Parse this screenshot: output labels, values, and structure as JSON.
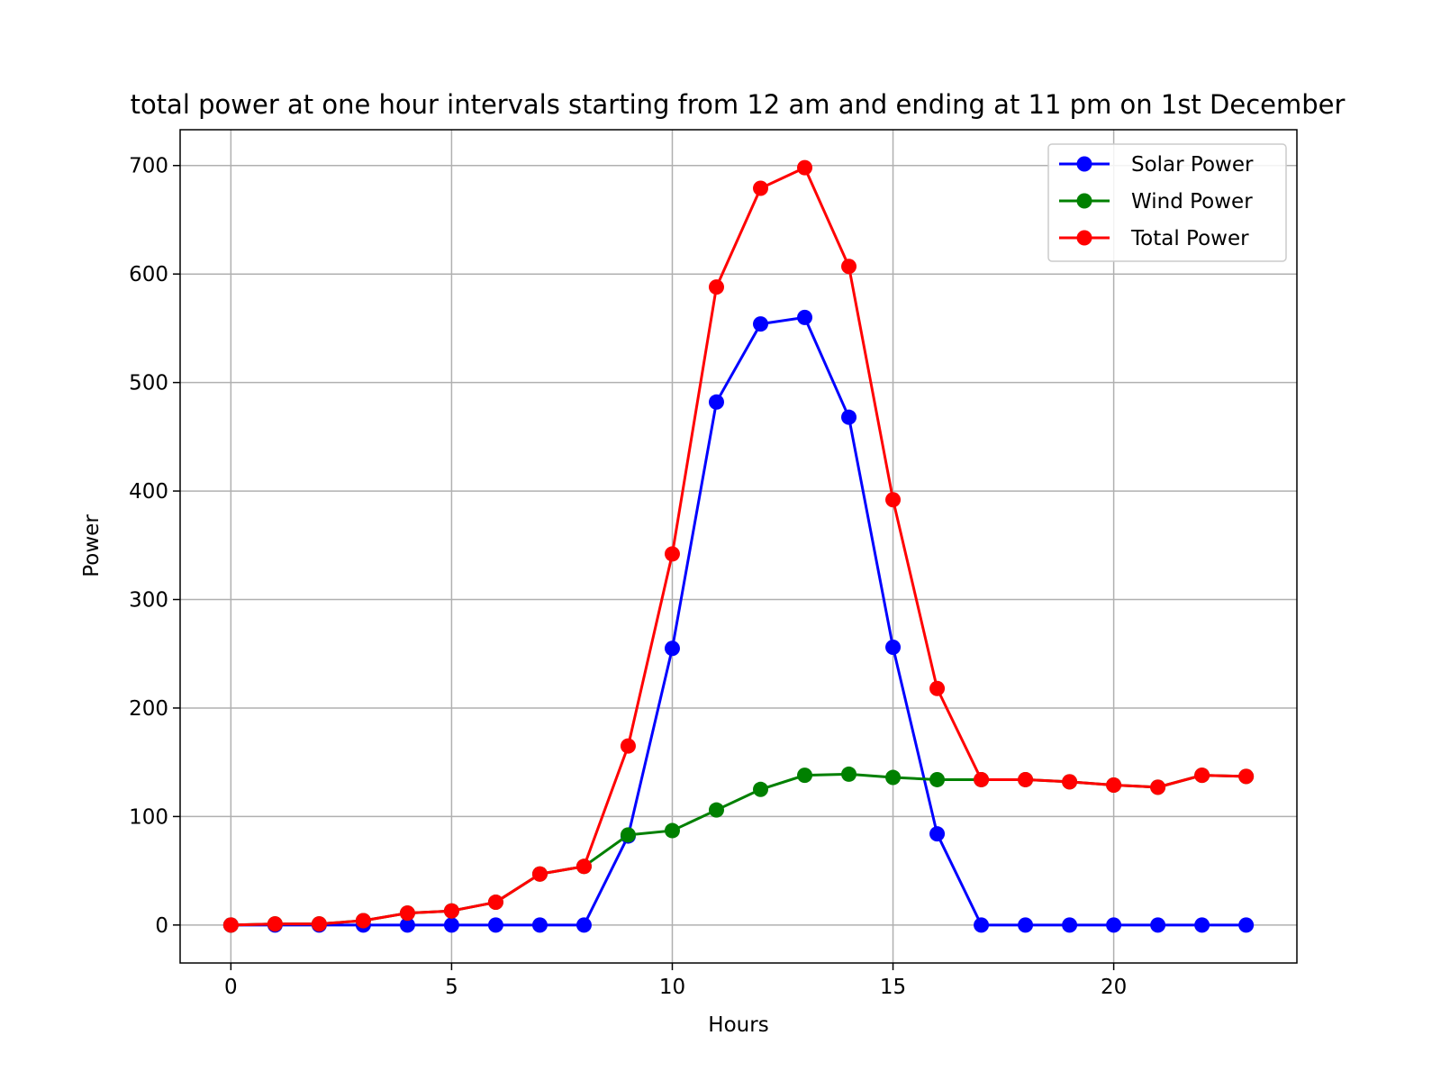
{
  "chart_data": {
    "type": "line",
    "title": "total power at one hour intervals starting from 12 am and ending at 11 pm on 1st December",
    "xlabel": "Hours",
    "ylabel": "Power",
    "xlim": [
      -1.15,
      24.15
    ],
    "ylim": [
      -35,
      733
    ],
    "xticks": [
      0,
      5,
      10,
      15,
      20
    ],
    "yticks": [
      0,
      100,
      200,
      300,
      400,
      500,
      600,
      700
    ],
    "grid": true,
    "legend_position": "top-right",
    "x": [
      0,
      1,
      2,
      3,
      4,
      5,
      6,
      7,
      8,
      9,
      10,
      11,
      12,
      13,
      14,
      15,
      16,
      17,
      18,
      19,
      20,
      21,
      22,
      23
    ],
    "series": [
      {
        "name": "Solar Power",
        "color": "#0000ff",
        "values": [
          0,
          0,
          0,
          0,
          0,
          0,
          0,
          0,
          0,
          82,
          255,
          482,
          554,
          560,
          468,
          256,
          84,
          0,
          0,
          0,
          0,
          0,
          0,
          0
        ]
      },
      {
        "name": "Wind Power",
        "color": "#008000",
        "values": [
          0,
          1,
          1,
          4,
          11,
          13,
          21,
          47,
          54,
          83,
          87,
          106,
          125,
          138,
          139,
          136,
          134,
          134,
          134,
          132,
          129,
          127,
          138,
          137
        ]
      },
      {
        "name": "Total Power",
        "color": "#ff0000",
        "values": [
          0,
          1,
          1,
          4,
          11,
          13,
          21,
          47,
          54,
          165,
          342,
          588,
          679,
          698,
          607,
          392,
          218,
          134,
          134,
          132,
          129,
          127,
          138,
          137
        ]
      }
    ]
  }
}
